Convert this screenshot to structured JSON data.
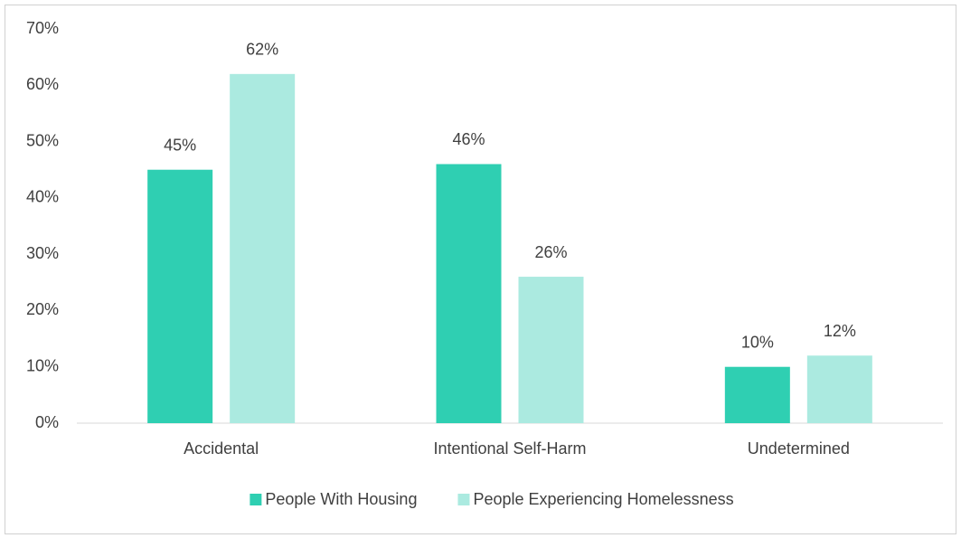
{
  "chart_data": {
    "type": "bar",
    "categories": [
      "Accidental",
      "Intentional Self-Harm",
      "Undetermined"
    ],
    "series": [
      {
        "name": "People With Housing",
        "color": "#2fcfb2",
        "values": [
          45,
          46,
          10
        ],
        "value_labels": [
          "45%",
          "46%",
          "10%"
        ]
      },
      {
        "name": "People Experiencing Homelessness",
        "color": "#abeae0",
        "values": [
          62,
          26,
          12
        ],
        "value_labels": [
          "62%",
          "26%",
          "12%"
        ]
      }
    ],
    "ylim": [
      0,
      70
    ],
    "yticks": [
      {
        "value": 0,
        "label": "0%"
      },
      {
        "value": 10,
        "label": "10%"
      },
      {
        "value": 20,
        "label": "20%"
      },
      {
        "value": 30,
        "label": "30%"
      },
      {
        "value": 40,
        "label": "40%"
      },
      {
        "value": 50,
        "label": "50%"
      },
      {
        "value": 60,
        "label": "60%"
      },
      {
        "value": 70,
        "label": "70%"
      }
    ],
    "grid": false,
    "legend": "bottom"
  }
}
